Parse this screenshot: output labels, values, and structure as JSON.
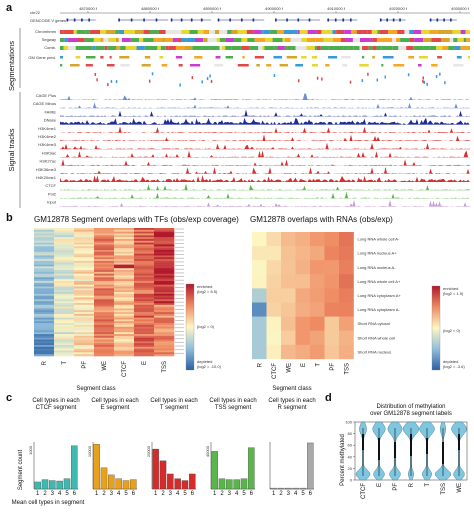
{
  "panel_a": {
    "letter": "a",
    "chrom": "chr22",
    "gencode_label": "GENCODE V genes",
    "coords": [
      "4870000 f",
      "4880000 f",
      "4890000 f",
      "4900000 f",
      "4910000 f",
      "4920000 f",
      "4930000 f"
    ],
    "group_segmentations": "Segmentations",
    "group_signal": "Signal tracks",
    "seg_tracks": [
      "Chromhmm",
      "Segway",
      "Comb.",
      "GM Gene pred.",
      ""
    ],
    "signal_tracks": [
      "CAGE Plus",
      "CAGE Minus",
      "FAIRE",
      "DNase",
      "H3K4me1",
      "H3K4me2",
      "H3K4me3",
      "H3K9ac",
      "H3K27ac",
      "H3K36me3",
      "H4K20me1",
      "CTCF",
      "Pol2",
      "Input"
    ]
  },
  "panel_b": {
    "letter": "b",
    "left": {
      "title": "GM12878 Segment overlaps with TFs (obs/exp coverage)",
      "x_title": "Segment class",
      "categories": [
        "R",
        "T",
        "PF",
        "WE",
        "CTCF",
        "E",
        "TSS"
      ],
      "legend_top": "enriched",
      "legend_top_val": "(log2 = 6.5)",
      "legend_mid": "(log2 = 0)",
      "legend_bottom": "depleted",
      "legend_bottom_val": "(log2 = -10.0)"
    },
    "right": {
      "title": "GM12878 overlaps with RNAs (obs/exp)",
      "x_title": "Segment class",
      "categories": [
        "R",
        "CTCF",
        "WE",
        "E",
        "T",
        "PF",
        "TSS"
      ],
      "rows": [
        "Long RNA whole cell A-",
        "Long RNA nucleus A+",
        "Long RNA nucleus A-",
        "Long RNA whole cell A+",
        "Long RNA cytoplasm A+",
        "Long RNA cytoplasm A-",
        "Short RNA cytosol",
        "Short RNA whole cell",
        "Short RNA nucleus"
      ],
      "legend_top": "enriched",
      "legend_top_val": "(log2 = 1.9)",
      "legend_mid": "(log2 = 0)",
      "legend_bottom": "depleted",
      "legend_bottom_val": "(log2 = -3.6)"
    }
  },
  "panel_c": {
    "letter": "c",
    "y_label": "Segment count",
    "x_label": "Mean cell types in segment",
    "x_ticks": [
      "1",
      "2",
      "3",
      "4",
      "5",
      "6"
    ],
    "charts": [
      {
        "title": "Cell types in each CTCF segment",
        "color": "#3fb8b0",
        "ytick": "1000",
        "values": [
          0.15,
          0.2,
          0.18,
          0.17,
          0.22,
          0.92
        ]
      },
      {
        "title": "Cell types in each E segment",
        "color": "#e8a11a",
        "ytick": "10000",
        "values": [
          0.95,
          0.45,
          0.3,
          0.22,
          0.18,
          0.2
        ]
      },
      {
        "title": "Cell types in each T segment",
        "color": "#d62b2b",
        "ytick": "20000",
        "values": [
          0.85,
          0.6,
          0.32,
          0.22,
          0.18,
          0.32
        ]
      },
      {
        "title": "Cell types in each TSS segment",
        "color": "#5ab54b",
        "ytick": "40000",
        "values": [
          0.8,
          0.22,
          0.2,
          0.2,
          0.22,
          0.88
        ]
      },
      {
        "title": "Cell types in each R segment",
        "color": "#a8a8a8",
        "ytick": "",
        "values": [
          0.02,
          0.02,
          0.02,
          0.02,
          0.02,
          0.98
        ]
      }
    ]
  },
  "panel_d": {
    "letter": "d",
    "title": "Distribution of methylation over GM12878 segment labels",
    "y_label": "Percent methylated",
    "y_ticks": [
      "0",
      "20",
      "40",
      "60",
      "80",
      "100"
    ],
    "categories": [
      "CTCF",
      "E",
      "PF",
      "R",
      "T",
      "TSS",
      "WE"
    ],
    "color": "#7fc7e0"
  }
}
